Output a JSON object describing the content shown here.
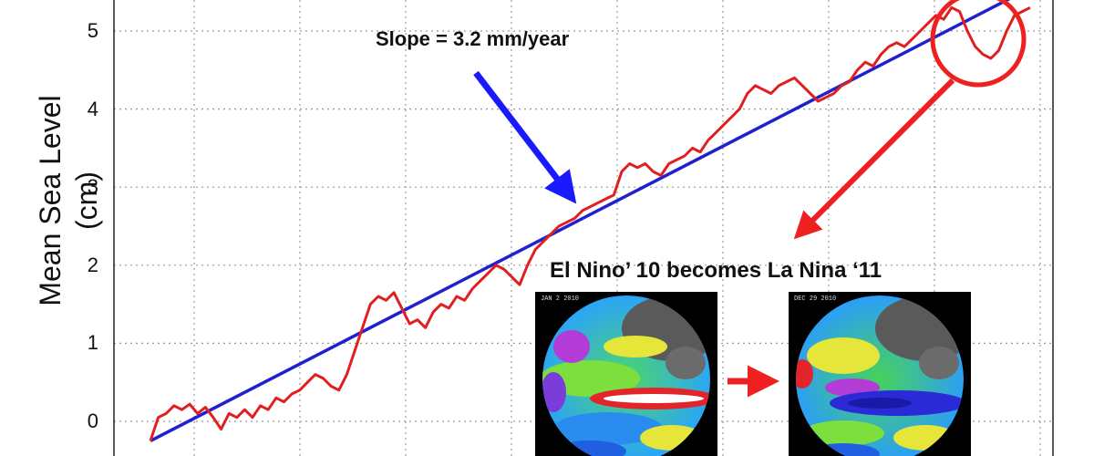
{
  "chart_data": {
    "type": "line",
    "title": "",
    "xlabel": "",
    "ylabel": "Mean Sea Level (cm)",
    "ylim": [
      -0.3,
      5.3
    ],
    "yticks": [
      "0",
      "1",
      "2",
      "3",
      "4",
      "5"
    ],
    "grid": true,
    "series": [
      {
        "values": [
          -0.25,
          0.05,
          0.1,
          0.2,
          0.15,
          0.22,
          0.1,
          0.18,
          0.05,
          -0.1,
          0.1,
          0.05,
          0.15,
          0.05,
          0.2,
          0.15,
          0.3,
          0.25,
          0.35,
          0.4,
          0.5,
          0.6,
          0.55,
          0.45,
          0.4,
          0.6,
          0.9,
          1.2,
          1.5,
          1.6,
          1.55,
          1.65,
          1.45,
          1.25,
          1.3,
          1.2,
          1.4,
          1.5,
          1.45,
          1.6,
          1.55,
          1.7,
          1.8,
          1.9,
          2.0,
          1.95,
          1.85,
          1.75,
          2.0,
          2.2,
          2.3,
          2.4,
          2.5,
          2.55,
          2.6,
          2.7,
          2.75,
          2.8,
          2.85,
          2.9,
          3.2,
          3.3,
          3.25,
          3.3,
          3.2,
          3.15,
          3.3,
          3.35,
          3.4,
          3.5,
          3.45,
          3.6,
          3.7,
          3.8,
          3.9,
          4.0,
          4.2,
          4.3,
          4.25,
          4.2,
          4.3,
          4.35,
          4.4,
          4.3,
          4.2,
          4.1,
          4.15,
          4.2,
          4.3,
          4.35,
          4.5,
          4.6,
          4.55,
          4.7,
          4.8,
          4.85,
          4.8,
          4.9,
          5.0,
          5.1,
          5.2,
          5.15,
          5.3,
          5.25,
          5.0,
          4.8,
          4.7,
          4.65,
          4.75,
          5.0,
          5.2,
          5.25,
          5.3
        ]
      },
      {
        "values": [
          -0.25,
          5.55
        ]
      }
    ],
    "annotations": [
      {
        "text": "Slope = 3.2 mm/year"
      },
      {
        "text": "El Nino’ 10 becomes La Nina ‘11"
      }
    ],
    "colors": {
      "data_line": "#e02020",
      "trend_line": "#2020cc",
      "arrow_blue": "#1a1aff",
      "arrow_red": "#ee2020",
      "grid": "#9a9a9a"
    }
  },
  "insets": {
    "left_date": "JAN 2 2010",
    "right_date": "DEC 29 2010"
  }
}
